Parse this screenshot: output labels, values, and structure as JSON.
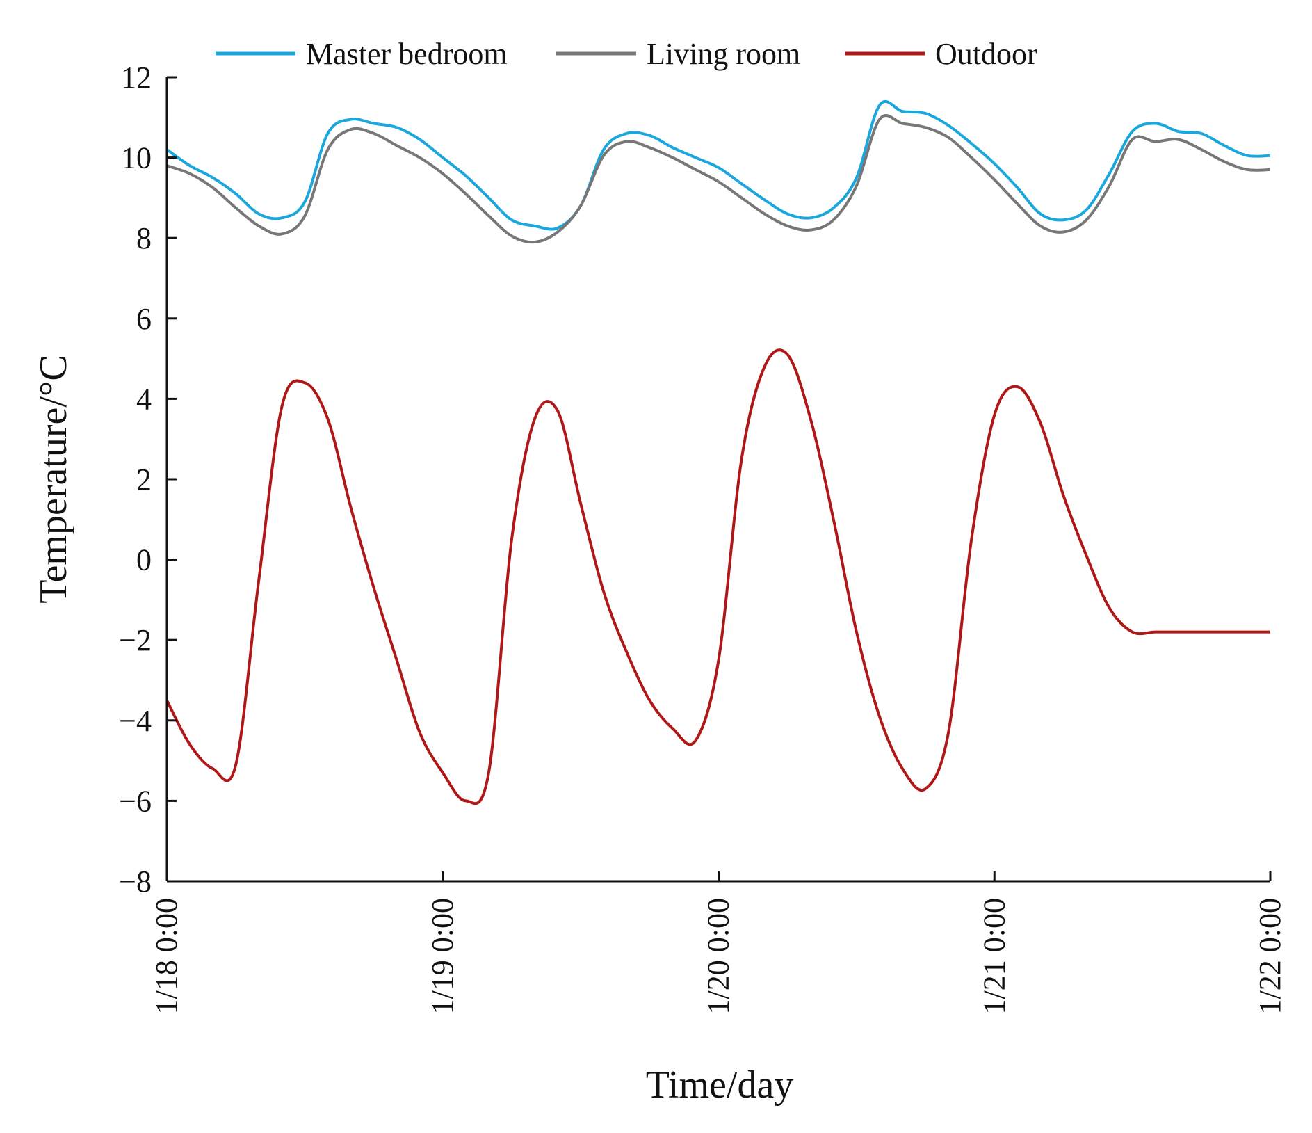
{
  "chart_data": {
    "type": "line",
    "xlabel": "Time/day",
    "ylabel": "Temperature/°C",
    "ylim": [
      -8,
      12
    ],
    "yticks": [
      -8,
      -6,
      -4,
      -2,
      0,
      2,
      4,
      6,
      8,
      10,
      12
    ],
    "xlim": [
      "1/18 0:00",
      "1/22 0:00"
    ],
    "xtick_labels": [
      "1/18 0:00",
      "1/19 0:00",
      "1/20 0:00",
      "1/21 0:00",
      "1/22 0:00"
    ],
    "grid": false,
    "legend_position": "top",
    "x": [
      "1/18 0:00",
      "1/18 2:00",
      "1/18 4:00",
      "1/18 6:00",
      "1/18 8:00",
      "1/18 10:00",
      "1/18 12:00",
      "1/18 14:00",
      "1/18 16:00",
      "1/18 18:00",
      "1/18 20:00",
      "1/18 22:00",
      "1/19 0:00",
      "1/19 2:00",
      "1/19 4:00",
      "1/19 6:00",
      "1/19 8:00",
      "1/19 10:00",
      "1/19 12:00",
      "1/19 14:00",
      "1/19 16:00",
      "1/19 18:00",
      "1/19 20:00",
      "1/19 22:00",
      "1/20 0:00",
      "1/20 2:00",
      "1/20 4:00",
      "1/20 6:00",
      "1/20 8:00",
      "1/20 10:00",
      "1/20 12:00",
      "1/20 14:00",
      "1/20 16:00",
      "1/20 18:00",
      "1/20 20:00",
      "1/20 22:00",
      "1/21 0:00",
      "1/21 2:00",
      "1/21 4:00",
      "1/21 6:00",
      "1/21 8:00",
      "1/21 10:00",
      "1/21 12:00",
      "1/21 14:00",
      "1/21 16:00",
      "1/21 18:00",
      "1/21 20:00",
      "1/21 22:00",
      "1/22 0:00"
    ],
    "series": [
      {
        "name": "Master bedroom",
        "color": "#1aa7dd",
        "values": [
          10.2,
          9.8,
          9.5,
          9.1,
          8.6,
          8.5,
          8.9,
          10.6,
          10.95,
          10.85,
          10.75,
          10.45,
          10.0,
          9.55,
          9.0,
          8.45,
          8.3,
          8.25,
          8.8,
          10.2,
          10.6,
          10.55,
          10.25,
          10.0,
          9.75,
          9.35,
          8.95,
          8.6,
          8.5,
          8.75,
          9.5,
          11.3,
          11.15,
          11.1,
          10.8,
          10.35,
          9.85,
          9.25,
          8.6,
          8.45,
          8.7,
          9.6,
          10.65,
          10.85,
          10.65,
          10.6,
          10.3,
          10.05,
          10.05
        ]
      },
      {
        "name": "Living room",
        "color": "#777777",
        "values": [
          9.8,
          9.6,
          9.25,
          8.75,
          8.3,
          8.1,
          8.55,
          10.2,
          10.7,
          10.6,
          10.3,
          10.0,
          9.6,
          9.1,
          8.55,
          8.05,
          7.9,
          8.15,
          8.8,
          10.05,
          10.4,
          10.25,
          10.0,
          9.7,
          9.4,
          9.0,
          8.6,
          8.3,
          8.2,
          8.45,
          9.3,
          10.95,
          10.85,
          10.75,
          10.5,
          10.0,
          9.45,
          8.85,
          8.3,
          8.15,
          8.45,
          9.3,
          10.45,
          10.4,
          10.45,
          10.2,
          9.9,
          9.7,
          9.7
        ]
      },
      {
        "name": "Outdoor",
        "color": "#b01818",
        "values": [
          -3.5,
          -4.6,
          -5.2,
          -5.1,
          -0.5,
          3.8,
          4.4,
          3.5,
          1.3,
          -0.7,
          -2.5,
          -4.3,
          -5.3,
          -6.0,
          -5.3,
          0.5,
          3.5,
          3.7,
          1.4,
          -0.8,
          -2.3,
          -3.5,
          -4.2,
          -4.5,
          -2.5,
          2.5,
          4.8,
          5.1,
          3.5,
          1.0,
          -1.8,
          -3.9,
          -5.2,
          -5.7,
          -4.3,
          0.5,
          3.6,
          4.3,
          3.4,
          1.6,
          0.1,
          -1.2,
          -1.8,
          -1.8,
          -1.8,
          -1.8,
          -1.8,
          -1.8,
          -1.8
        ]
      }
    ]
  }
}
